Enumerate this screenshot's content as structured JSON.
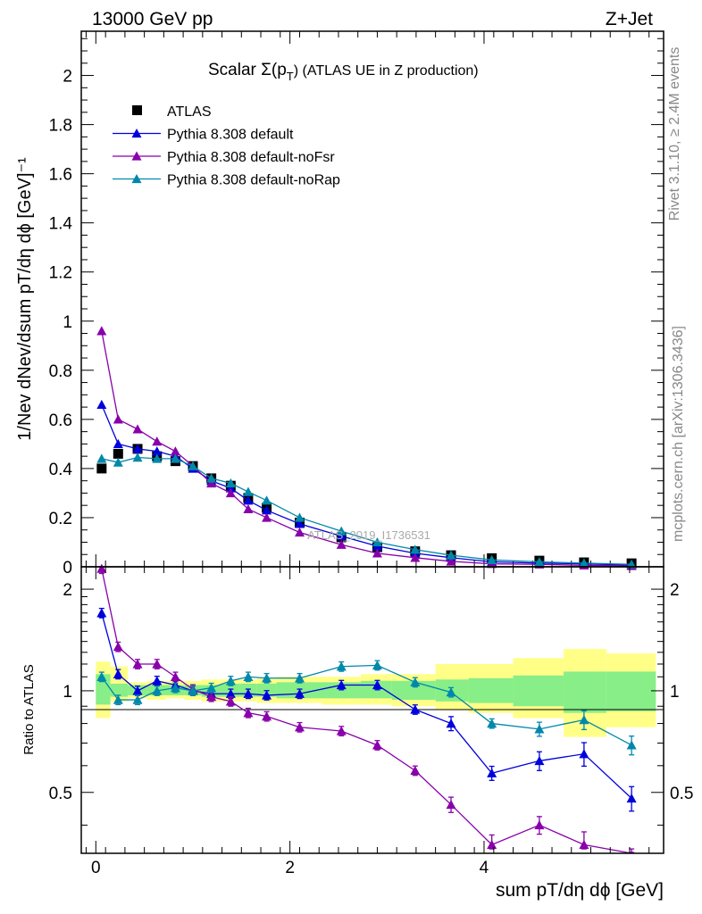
{
  "header": {
    "left": "13000 GeV pp",
    "right": "Z+Jet"
  },
  "side_labels": {
    "rivet": "Rivet 3.1.10, ≥ 2.4M events",
    "mcplots": "mcplots.cern.ch [arXiv:1306.3436]"
  },
  "chart_data": {
    "type": "line",
    "title": "Scalar Σ(pT) (ATLAS UE in Z production)",
    "title_main": "Scalar Σ(p",
    "title_sub": "T",
    "title_tail": ") (ATLAS UE in Z production)",
    "watermark": "ATLAS_2019_I1736531",
    "xlabel": "sum pT/dη dϕ [GeV]",
    "ylabel": "1/Nev dNev/dsum pT/dη dϕ [GeV]⁻¹",
    "ratio_ylabel": "Ratio to ATLAS",
    "xlim": [
      -0.15,
      5.85
    ],
    "ylim": [
      0,
      2.18
    ],
    "ratio_ylim": [
      0.33,
      2.33
    ],
    "ratio_log": true,
    "xticks": [
      "0",
      "2",
      "4"
    ],
    "yticks": [
      "0",
      "0.2",
      "0.4",
      "0.6",
      "0.8",
      "1",
      "1.2",
      "1.4",
      "1.6",
      "1.8",
      "2"
    ],
    "ratio_yticks": [
      "0.5",
      "1",
      "2"
    ],
    "legend_position": "top-left",
    "x": [
      0.06,
      0.23,
      0.43,
      0.63,
      0.82,
      1.0,
      1.19,
      1.39,
      1.57,
      1.76,
      2.1,
      2.53,
      2.9,
      3.29,
      3.66,
      4.08,
      4.57,
      5.03,
      5.52
    ],
    "series": [
      {
        "name": "ATLAS",
        "color": "#000000",
        "marker": "square",
        "values": [
          0.4,
          0.46,
          0.48,
          0.45,
          0.43,
          0.41,
          0.36,
          0.33,
          0.28,
          0.24,
          0.18,
          0.12,
          0.08,
          0.063,
          0.047,
          0.035,
          0.025,
          0.018,
          0.014
        ]
      },
      {
        "name": "Pythia 8.308 default",
        "color": "#0000dd",
        "marker": "triangle",
        "values": [
          0.66,
          0.5,
          0.48,
          0.47,
          0.45,
          0.4,
          0.35,
          0.32,
          0.27,
          0.23,
          0.175,
          0.125,
          0.084,
          0.055,
          0.037,
          0.02,
          0.015,
          0.012,
          0.007
        ],
        "ratio": [
          1.7,
          1.12,
          1.0,
          1.07,
          1.04,
          1.0,
          0.98,
          0.98,
          0.98,
          0.97,
          0.98,
          1.04,
          1.04,
          0.88,
          0.8,
          0.57,
          0.62,
          0.65,
          0.48
        ],
        "ratio_err": [
          0.02,
          0.02,
          0.02,
          0.02,
          0.02,
          0.02,
          0.02,
          0.02,
          0.02,
          0.02,
          0.02,
          0.02,
          0.02,
          0.02,
          0.03,
          0.03,
          0.04,
          0.05,
          0.05
        ]
      },
      {
        "name": "Pythia 8.308 default-noFsr",
        "color": "#8800aa",
        "marker": "triangle",
        "values": [
          0.96,
          0.6,
          0.56,
          0.51,
          0.47,
          0.41,
          0.34,
          0.3,
          0.235,
          0.2,
          0.14,
          0.09,
          0.055,
          0.037,
          0.022,
          0.012,
          0.01,
          0.006,
          0.004
        ],
        "ratio": [
          2.3,
          1.35,
          1.2,
          1.2,
          1.1,
          1.01,
          0.96,
          0.93,
          0.86,
          0.84,
          0.78,
          0.76,
          0.69,
          0.58,
          0.46,
          0.35,
          0.4,
          0.35,
          0.3
        ],
        "ratio_err": [
          0.02,
          0.02,
          0.02,
          0.02,
          0.02,
          0.02,
          0.02,
          0.02,
          0.02,
          0.02,
          0.02,
          0.02,
          0.02,
          0.02,
          0.03,
          0.03,
          0.03,
          0.04,
          0.04
        ]
      },
      {
        "name": "Pythia 8.308 default-noRap",
        "color": "#0088aa",
        "marker": "triangle",
        "values": [
          0.44,
          0.425,
          0.445,
          0.44,
          0.44,
          0.41,
          0.36,
          0.34,
          0.305,
          0.27,
          0.2,
          0.145,
          0.1,
          0.07,
          0.047,
          0.028,
          0.02,
          0.015,
          0.01
        ],
        "ratio": [
          1.1,
          0.94,
          0.94,
          1.0,
          1.02,
          1.0,
          1.02,
          1.07,
          1.1,
          1.09,
          1.09,
          1.18,
          1.19,
          1.06,
          0.99,
          0.8,
          0.77,
          0.82,
          0.69
        ],
        "ratio_err": [
          0.02,
          0.02,
          0.02,
          0.02,
          0.02,
          0.02,
          0.02,
          0.02,
          0.02,
          0.02,
          0.02,
          0.02,
          0.02,
          0.02,
          0.02,
          0.02,
          0.03,
          0.04,
          0.04
        ]
      }
    ],
    "band_edges": [
      0.0,
      0.15,
      0.33,
      0.53,
      0.72,
      0.91,
      1.09,
      1.29,
      1.48,
      1.66,
      1.86,
      2.33,
      2.73,
      3.05,
      3.5,
      3.84,
      4.3,
      4.82,
      5.26,
      5.77
    ],
    "band_total": [
      [
        0.83,
        1.22
      ],
      [
        0.93,
        1.18
      ],
      [
        0.95,
        1.06
      ],
      [
        0.94,
        1.07
      ],
      [
        0.95,
        1.07
      ],
      [
        0.94,
        1.07
      ],
      [
        0.93,
        1.08
      ],
      [
        0.93,
        1.08
      ],
      [
        0.93,
        1.08
      ],
      [
        0.92,
        1.09
      ],
      [
        0.92,
        1.1
      ],
      [
        0.91,
        1.1
      ],
      [
        0.91,
        1.12
      ],
      [
        0.9,
        1.12
      ],
      [
        0.88,
        1.2
      ],
      [
        0.86,
        1.2
      ],
      [
        0.83,
        1.25
      ],
      [
        0.73,
        1.33
      ],
      [
        0.78,
        1.29
      ]
    ],
    "band_stat": [
      [
        0.91,
        1.12
      ],
      [
        0.96,
        1.05
      ],
      [
        0.97,
        1.04
      ],
      [
        0.97,
        1.04
      ],
      [
        0.97,
        1.04
      ],
      [
        0.97,
        1.04
      ],
      [
        0.96,
        1.04
      ],
      [
        0.96,
        1.05
      ],
      [
        0.96,
        1.05
      ],
      [
        0.96,
        1.05
      ],
      [
        0.95,
        1.06
      ],
      [
        0.95,
        1.06
      ],
      [
        0.95,
        1.07
      ],
      [
        0.94,
        1.07
      ],
      [
        0.93,
        1.08
      ],
      [
        0.92,
        1.09
      ],
      [
        0.9,
        1.11
      ],
      [
        0.86,
        1.14
      ],
      [
        0.87,
        1.14
      ]
    ]
  }
}
